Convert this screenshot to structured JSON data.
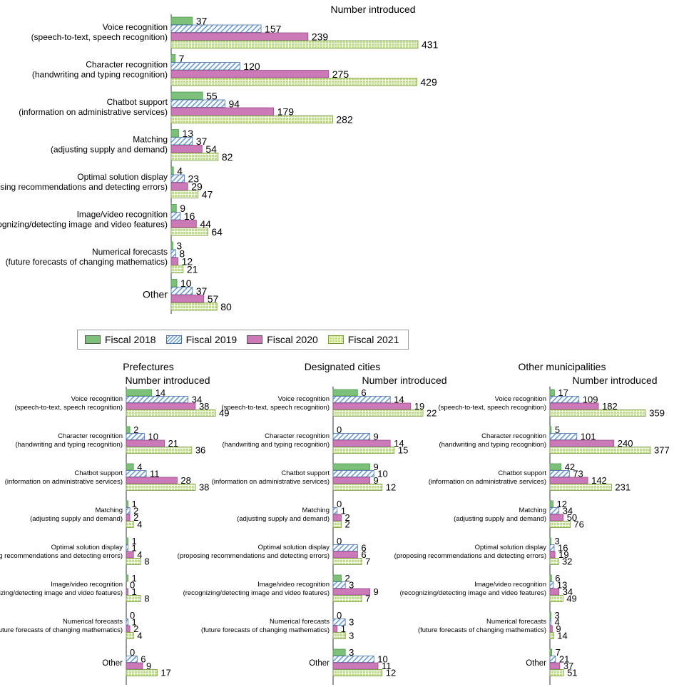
{
  "legend": {
    "items": [
      "Fiscal 2018",
      "Fiscal 2019",
      "Fiscal 2020",
      "Fiscal 2021"
    ]
  },
  "colors": {
    "fiscal_2018": "#7cc07a",
    "fiscal_2019": "#6a9bd2",
    "fiscal_2020": "#cc79b8",
    "fiscal_2021": "#c2df7e"
  },
  "chart_data": [
    {
      "type": "bar",
      "orientation": "horizontal",
      "title": "",
      "axis_label": "Number introduced",
      "categories": [
        [
          "Voice recognition",
          "(speech-to-text, speech recognition)"
        ],
        [
          "Character recognition",
          "(handwriting and typing recognition)"
        ],
        [
          "Chatbot support",
          "(information on administrative services)"
        ],
        [
          "Matching",
          "(adjusting supply and demand)"
        ],
        [
          "Optimal solution display",
          "(proposing recommendations and detecting errors)"
        ],
        [
          "Image/video recognition",
          "(recognizing/detecting image and video features)"
        ],
        [
          "Numerical forecasts",
          "(future forecasts of changing mathematics)"
        ],
        [
          "Other"
        ]
      ],
      "series": [
        {
          "name": "Fiscal 2018",
          "values": [
            37,
            7,
            55,
            13,
            4,
            9,
            3,
            10
          ]
        },
        {
          "name": "Fiscal 2019",
          "values": [
            157,
            120,
            94,
            37,
            23,
            16,
            8,
            37
          ]
        },
        {
          "name": "Fiscal 2020",
          "values": [
            239,
            275,
            179,
            54,
            29,
            44,
            12,
            57
          ]
        },
        {
          "name": "Fiscal 2021",
          "values": [
            431,
            429,
            282,
            82,
            47,
            64,
            21,
            80
          ]
        }
      ],
      "xlim": [
        0,
        431
      ]
    },
    {
      "type": "bar",
      "orientation": "horizontal",
      "title": "Prefectures",
      "axis_label": "Number introduced",
      "categories": [
        [
          "Voice recognition",
          "(speech-to-text, speech recognition)"
        ],
        [
          "Character recognition",
          "(handwriting and typing recognition)"
        ],
        [
          "Chatbot support",
          "(information on administrative services)"
        ],
        [
          "Matching",
          "(adjusting supply and demand)"
        ],
        [
          "Optimal solution display",
          "(proposing recommendations and detecting errors)"
        ],
        [
          "Image/video recognition",
          "(recognizing/detecting image and video features)"
        ],
        [
          "Numerical forecasts",
          "(future forecasts of changing mathematics)"
        ],
        [
          "Other"
        ]
      ],
      "series": [
        {
          "name": "Fiscal 2018",
          "values": [
            14,
            2,
            4,
            1,
            1,
            1,
            0,
            0
          ]
        },
        {
          "name": "Fiscal 2019",
          "values": [
            34,
            10,
            11,
            2,
            1,
            0,
            1,
            6
          ]
        },
        {
          "name": "Fiscal 2020",
          "values": [
            38,
            21,
            28,
            2,
            4,
            1,
            2,
            9
          ]
        },
        {
          "name": "Fiscal 2021",
          "values": [
            49,
            36,
            38,
            4,
            8,
            8,
            4,
            17
          ]
        }
      ],
      "xlim": [
        0,
        49
      ]
    },
    {
      "type": "bar",
      "orientation": "horizontal",
      "title": "Designated cities",
      "axis_label": "Number introduced",
      "categories": [
        [
          "Voice recognition",
          "(speech-to-text, speech recognition)"
        ],
        [
          "Character recognition",
          "(handwriting and typing recognition)"
        ],
        [
          "Chatbot support",
          "(information on administrative services)"
        ],
        [
          "Matching",
          "(adjusting supply and demand)"
        ],
        [
          "Optimal solution display",
          "(proposing recommendations and detecting errors)"
        ],
        [
          "Image/video recognition",
          "(recognizing/detecting image and video features)"
        ],
        [
          "Numerical forecasts",
          "(future forecasts of changing mathematics)"
        ],
        [
          "Other"
        ]
      ],
      "series": [
        {
          "name": "Fiscal 2018",
          "values": [
            6,
            0,
            9,
            0,
            0,
            2,
            0,
            3
          ]
        },
        {
          "name": "Fiscal 2019",
          "values": [
            14,
            9,
            10,
            1,
            6,
            3,
            3,
            10
          ]
        },
        {
          "name": "Fiscal 2020",
          "values": [
            19,
            14,
            9,
            2,
            6,
            9,
            1,
            11
          ]
        },
        {
          "name": "Fiscal 2021",
          "values": [
            22,
            15,
            12,
            2,
            7,
            7,
            3,
            12
          ]
        }
      ],
      "xlim": [
        0,
        22
      ]
    },
    {
      "type": "bar",
      "orientation": "horizontal",
      "title": "Other municipalities",
      "axis_label": "Number introduced",
      "categories": [
        [
          "Voice recognition",
          "(speech-to-text, speech recognition)"
        ],
        [
          "Character recognition",
          "(handwriting and typing recognition)"
        ],
        [
          "Chatbot support",
          "(information on administrative services)"
        ],
        [
          "Matching",
          "(adjusting supply and demand)"
        ],
        [
          "Optimal solution display",
          "(proposing recommendations and detecting errors)"
        ],
        [
          "Image/video recognition",
          "(recognizing/detecting image and video features)"
        ],
        [
          "Numerical forecasts",
          "(future forecasts of changing mathematics)"
        ],
        [
          "Other"
        ]
      ],
      "series": [
        {
          "name": "Fiscal 2018",
          "values": [
            17,
            5,
            42,
            12,
            3,
            6,
            3,
            7
          ]
        },
        {
          "name": "Fiscal 2019",
          "values": [
            109,
            101,
            73,
            34,
            16,
            13,
            4,
            21
          ]
        },
        {
          "name": "Fiscal 2020",
          "values": [
            182,
            240,
            142,
            50,
            19,
            34,
            9,
            37
          ]
        },
        {
          "name": "Fiscal 2021",
          "values": [
            359,
            377,
            231,
            76,
            32,
            49,
            14,
            51
          ]
        }
      ],
      "xlim": [
        0,
        377
      ]
    }
  ]
}
